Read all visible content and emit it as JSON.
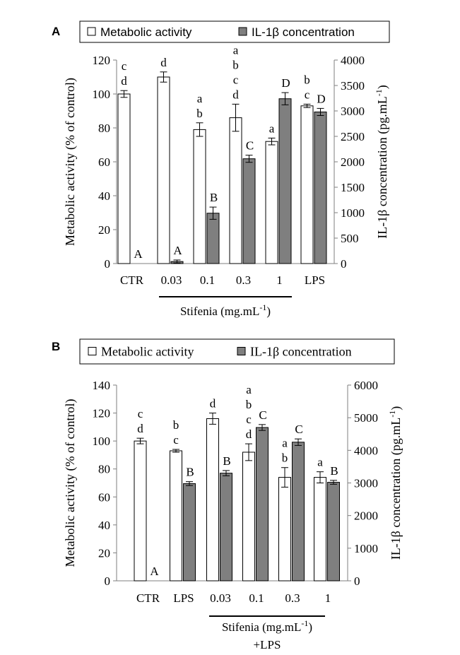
{
  "chart_data": [
    {
      "panel": "A",
      "type": "bar",
      "categories": [
        "CTR",
        "0.03",
        "0.1",
        "0.3",
        "1",
        "LPS"
      ],
      "legend": {
        "items": [
          "Metabolic activity",
          "IL-1β concentration"
        ],
        "placement": "top"
      },
      "left_axis": {
        "label": "Metabolic activity (% of control)",
        "ylim": [
          0,
          120
        ],
        "ticks": [
          "0",
          "20",
          "40",
          "60",
          "80",
          "100",
          "120"
        ]
      },
      "right_axis": {
        "label": "IL-1β concentration (pg.mL-1)",
        "ylim": [
          0,
          4000
        ],
        "ticks": [
          "0",
          "500",
          "1000",
          "1500",
          "2000",
          "2500",
          "3000",
          "3500",
          "4000"
        ]
      },
      "series": [
        {
          "name": "Metabolic activity",
          "axis": "left",
          "color": "#ffffff",
          "values": [
            100,
            110,
            79,
            86,
            72,
            93
          ],
          "errors": [
            2,
            3,
            4,
            8,
            2,
            1
          ],
          "letters": [
            [
              "c",
              "d"
            ],
            [
              "d"
            ],
            [
              "a",
              "b"
            ],
            [
              "a",
              "b",
              "c",
              "d"
            ],
            [
              "a"
            ],
            [
              "b",
              "c"
            ]
          ]
        },
        {
          "name": "IL-1β concentration",
          "axis": "right",
          "color": "#7f7f7f",
          "values": [
            0,
            40,
            990,
            2060,
            3240,
            2980
          ],
          "errors": [
            0,
            30,
            120,
            70,
            120,
            70
          ],
          "letters": [
            [
              "A"
            ],
            [
              "A"
            ],
            [
              "B"
            ],
            [
              "C"
            ],
            [
              "D"
            ],
            [
              "D"
            ]
          ]
        }
      ],
      "group_label": {
        "text": "Stifenia (mg.mL",
        "sup": "-1",
        "suffix": ")",
        "span": [
          "0.03",
          "1"
        ]
      }
    },
    {
      "panel": "B",
      "type": "bar",
      "categories": [
        "CTR",
        "LPS",
        "0.03",
        "0.1",
        "0.3",
        "1"
      ],
      "legend": {
        "items": [
          "Metabolic activity",
          "IL-1β concentration"
        ],
        "placement": "top"
      },
      "left_axis": {
        "label": "Metabolic activity (% of control)",
        "ylim": [
          0,
          140
        ],
        "ticks": [
          "0",
          "20",
          "40",
          "60",
          "80",
          "100",
          "120",
          "140"
        ]
      },
      "right_axis": {
        "label": "IL-1β concentration (pg.mL-1)",
        "ylim": [
          0,
          6000
        ],
        "ticks": [
          "0",
          "1000",
          "2000",
          "3000",
          "4000",
          "5000",
          "6000"
        ]
      },
      "series": [
        {
          "name": "Metabolic activity",
          "axis": "left",
          "color": "#ffffff",
          "values": [
            100,
            93,
            116,
            92,
            74,
            74
          ],
          "errors": [
            2,
            1,
            4,
            6,
            7,
            4
          ],
          "letters": [
            [
              "c",
              "d"
            ],
            [
              "b",
              "c"
            ],
            [
              "d"
            ],
            [
              "a",
              "b",
              "c",
              "d"
            ],
            [
              "a",
              "b"
            ],
            [
              "a"
            ]
          ]
        },
        {
          "name": "IL-1β concentration",
          "axis": "right",
          "color": "#7f7f7f",
          "values": [
            0,
            2980,
            3300,
            4700,
            4250,
            3020
          ],
          "errors": [
            0,
            60,
            80,
            90,
            100,
            60
          ],
          "letters": [
            [
              "A"
            ],
            [
              "B"
            ],
            [
              "B"
            ],
            [
              "C"
            ],
            [
              "C"
            ],
            [
              "B"
            ]
          ]
        }
      ],
      "group_label": {
        "text": "Stifenia (mg.mL",
        "sup": "-1",
        "suffix": ")",
        "line2": "+LPS",
        "span": [
          "0.03",
          "1"
        ]
      }
    }
  ]
}
